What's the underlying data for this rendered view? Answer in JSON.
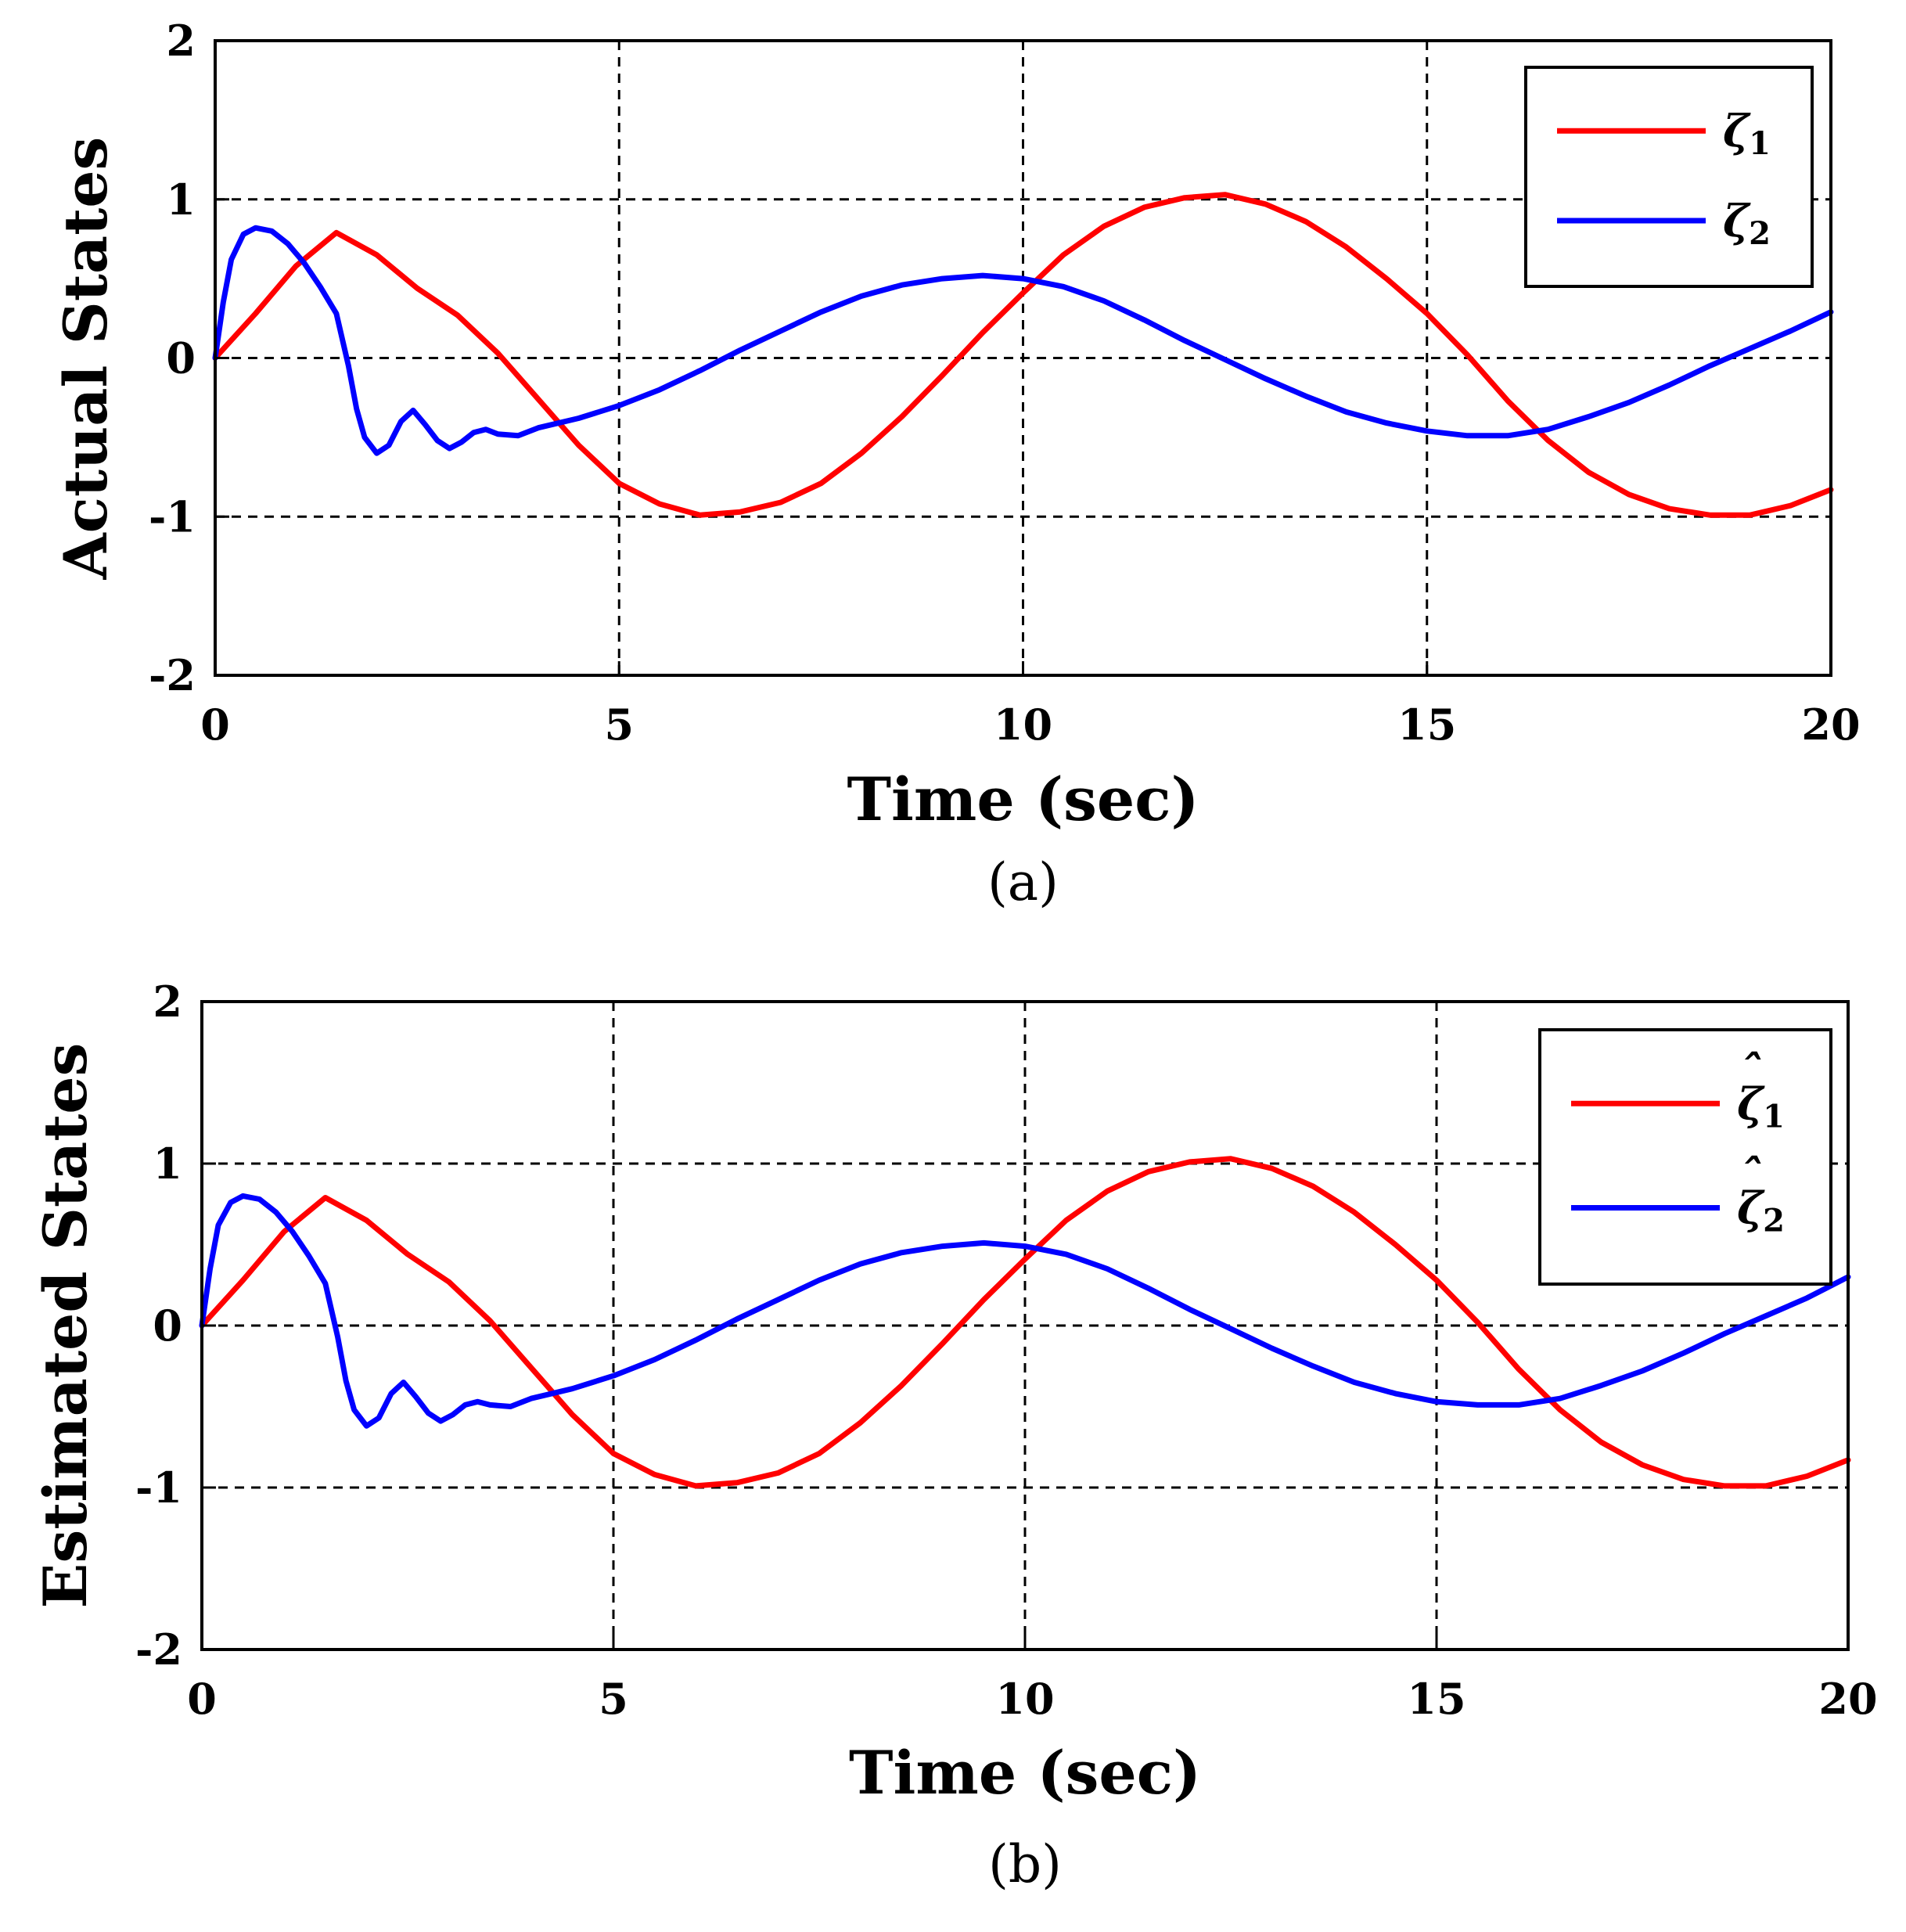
{
  "figure": {
    "panels": [
      "a",
      "b"
    ]
  },
  "colors": {
    "series1": "#ff0000",
    "series2": "#0000ff",
    "grid": "#000000"
  },
  "chart_data": [
    {
      "type": "line",
      "caption": "(a)",
      "caption_letter": "a",
      "xlabel": "Time (sec)",
      "ylabel": "Actual States",
      "xlim": [
        0,
        20
      ],
      "ylim": [
        -2,
        2
      ],
      "xticks": [
        0,
        5,
        10,
        15,
        20
      ],
      "yticks": [
        -2,
        -1,
        0,
        1,
        2
      ],
      "grid": true,
      "legend_position": "top-right",
      "series": [
        {
          "name": "ζ1",
          "label_base": "ζ",
          "label_sub": "1",
          "hat": false,
          "color": "#ff0000",
          "x": [
            0,
            0.5,
            1,
            1.5,
            2,
            2.5,
            3,
            3.5,
            4,
            4.5,
            5,
            5.5,
            6,
            6.5,
            7,
            7.5,
            8,
            8.5,
            9,
            9.5,
            10,
            10.5,
            11,
            11.5,
            12,
            12.5,
            13,
            13.5,
            14,
            14.5,
            15,
            15.5,
            16,
            16.5,
            17,
            17.5,
            18,
            18.5,
            19,
            19.5,
            20
          ],
          "y": [
            0,
            0.28,
            0.58,
            0.79,
            0.65,
            0.44,
            0.27,
            0.03,
            -0.26,
            -0.55,
            -0.79,
            -0.92,
            -0.99,
            -0.97,
            -0.91,
            -0.79,
            -0.6,
            -0.37,
            -0.11,
            0.16,
            0.41,
            0.65,
            0.83,
            0.95,
            1.01,
            1.03,
            0.97,
            0.86,
            0.7,
            0.5,
            0.28,
            0.02,
            -0.27,
            -0.52,
            -0.72,
            -0.86,
            -0.95,
            -0.99,
            -0.99,
            -0.93,
            -0.83
          ]
        },
        {
          "name": "ζ2",
          "label_base": "ζ",
          "label_sub": "2",
          "hat": false,
          "color": "#0000ff",
          "x": [
            0,
            0.1,
            0.2,
            0.35,
            0.5,
            0.7,
            0.9,
            1.1,
            1.3,
            1.5,
            1.65,
            1.75,
            1.85,
            2.0,
            2.15,
            2.3,
            2.45,
            2.6,
            2.75,
            2.9,
            3.05,
            3.2,
            3.35,
            3.5,
            3.75,
            4,
            4.5,
            5,
            5.5,
            6,
            6.5,
            7,
            7.5,
            8,
            8.5,
            9,
            9.5,
            10,
            10.5,
            11,
            11.5,
            12,
            12.5,
            13,
            13.5,
            14,
            14.5,
            15,
            15.5,
            16,
            16.5,
            17,
            17.5,
            18,
            18.5,
            19,
            19.5,
            20
          ],
          "y": [
            0,
            0.35,
            0.62,
            0.78,
            0.82,
            0.8,
            0.72,
            0.6,
            0.45,
            0.28,
            -0.05,
            -0.32,
            -0.5,
            -0.6,
            -0.55,
            -0.4,
            -0.33,
            -0.42,
            -0.52,
            -0.57,
            -0.53,
            -0.47,
            -0.45,
            -0.48,
            -0.49,
            -0.44,
            -0.38,
            -0.3,
            -0.2,
            -0.08,
            0.05,
            0.17,
            0.29,
            0.39,
            0.46,
            0.5,
            0.52,
            0.5,
            0.45,
            0.36,
            0.24,
            0.11,
            -0.01,
            -0.13,
            -0.24,
            -0.34,
            -0.41,
            -0.46,
            -0.49,
            -0.49,
            -0.45,
            -0.37,
            -0.28,
            -0.17,
            -0.05,
            0.06,
            0.17,
            0.29
          ]
        }
      ]
    },
    {
      "type": "line",
      "caption": "(b)",
      "caption_letter": "b",
      "xlabel": "Time (sec)",
      "ylabel": "Estimated States",
      "xlim": [
        0,
        20
      ],
      "ylim": [
        -2,
        2
      ],
      "xticks": [
        0,
        5,
        10,
        15,
        20
      ],
      "yticks": [
        -2,
        -1,
        0,
        1,
        2
      ],
      "grid": true,
      "legend_position": "top-right",
      "series": [
        {
          "name": "ζ̂1",
          "label_base": "ζ",
          "label_sub": "1",
          "hat": true,
          "color": "#ff0000",
          "x": [
            0,
            0.5,
            1,
            1.5,
            2,
            2.5,
            3,
            3.5,
            4,
            4.5,
            5,
            5.5,
            6,
            6.5,
            7,
            7.5,
            8,
            8.5,
            9,
            9.5,
            10,
            10.5,
            11,
            11.5,
            12,
            12.5,
            13,
            13.5,
            14,
            14.5,
            15,
            15.5,
            16,
            16.5,
            17,
            17.5,
            18,
            18.5,
            19,
            19.5,
            20
          ],
          "y": [
            0,
            0.28,
            0.58,
            0.79,
            0.65,
            0.44,
            0.27,
            0.03,
            -0.26,
            -0.55,
            -0.79,
            -0.92,
            -0.99,
            -0.97,
            -0.91,
            -0.79,
            -0.6,
            -0.37,
            -0.11,
            0.16,
            0.41,
            0.65,
            0.83,
            0.95,
            1.01,
            1.03,
            0.97,
            0.86,
            0.7,
            0.5,
            0.28,
            0.02,
            -0.27,
            -0.52,
            -0.72,
            -0.86,
            -0.95,
            -0.99,
            -0.99,
            -0.93,
            -0.83
          ]
        },
        {
          "name": "ζ̂2",
          "label_base": "ζ",
          "label_sub": "2",
          "hat": true,
          "color": "#0000ff",
          "x": [
            0,
            0.1,
            0.2,
            0.35,
            0.5,
            0.7,
            0.9,
            1.1,
            1.3,
            1.5,
            1.65,
            1.75,
            1.85,
            2.0,
            2.15,
            2.3,
            2.45,
            2.6,
            2.75,
            2.9,
            3.05,
            3.2,
            3.35,
            3.5,
            3.75,
            4,
            4.5,
            5,
            5.5,
            6,
            6.5,
            7,
            7.5,
            8,
            8.5,
            9,
            9.5,
            10,
            10.5,
            11,
            11.5,
            12,
            12.5,
            13,
            13.5,
            14,
            14.5,
            15,
            15.5,
            16,
            16.5,
            17,
            17.5,
            18,
            18.5,
            19,
            19.5,
            20
          ],
          "y": [
            0,
            0.35,
            0.62,
            0.76,
            0.8,
            0.78,
            0.7,
            0.58,
            0.43,
            0.26,
            -0.07,
            -0.34,
            -0.52,
            -0.62,
            -0.57,
            -0.42,
            -0.35,
            -0.44,
            -0.54,
            -0.59,
            -0.55,
            -0.49,
            -0.47,
            -0.49,
            -0.5,
            -0.45,
            -0.39,
            -0.31,
            -0.21,
            -0.09,
            0.04,
            0.16,
            0.28,
            0.38,
            0.45,
            0.49,
            0.51,
            0.49,
            0.44,
            0.35,
            0.23,
            0.1,
            -0.02,
            -0.14,
            -0.25,
            -0.35,
            -0.42,
            -0.47,
            -0.49,
            -0.49,
            -0.45,
            -0.37,
            -0.28,
            -0.17,
            -0.05,
            0.06,
            0.17,
            0.3
          ]
        }
      ]
    }
  ]
}
